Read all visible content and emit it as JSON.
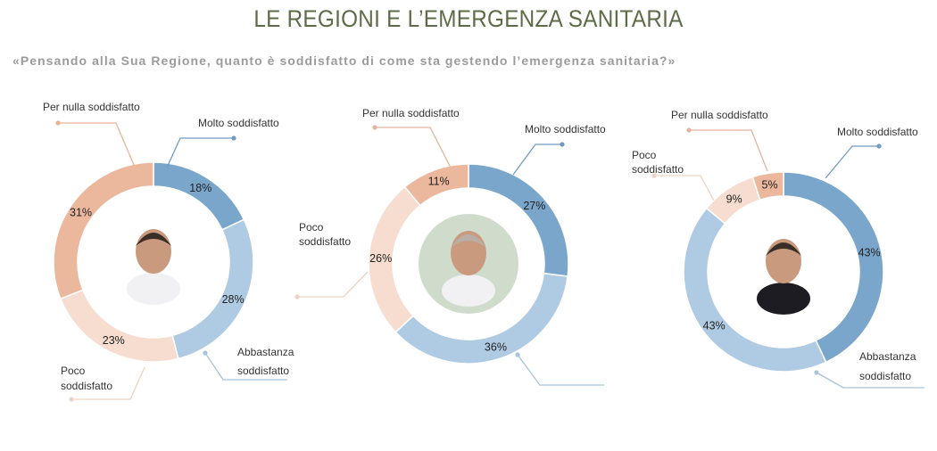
{
  "title": "LE REGIONI E L’EMERGENZA SANITARIA",
  "subtitle": "«Pensando alla Sua Regione, quanto è soddisfatto di come sta gestendo l’emergenza sanitaria?»",
  "colors": {
    "molto": "#7aa6cc",
    "abbastanza": "#afcbe3",
    "poco": "#f6ddd0",
    "per_nulla": "#ebb79d",
    "title": "#5e6b47"
  },
  "chart_data": [
    {
      "type": "pie",
      "donut": true,
      "categories": [
        "Molto soddisfatto",
        "Abbastanza soddisfatto",
        "Poco soddisfatto",
        "Per nulla soddisfatto"
      ],
      "values": [
        18,
        28,
        23,
        31
      ],
      "value_labels": [
        "18%",
        "28%",
        "23%",
        "31%"
      ],
      "labels": {
        "molto": "Molto soddisfatto",
        "abbastanza_1": "Abbastanza",
        "abbastanza_2": "soddisfatto",
        "poco_1": "Poco",
        "poco_2": "soddisfatto",
        "per_nulla": "Per nulla soddisfatto"
      }
    },
    {
      "type": "pie",
      "donut": true,
      "categories": [
        "Molto soddisfatto",
        "Abbastanza soddisfatto",
        "Poco soddisfatto",
        "Per nulla soddisfatto"
      ],
      "values": [
        27,
        36,
        26,
        11
      ],
      "value_labels": [
        "27%",
        "36%",
        "26%",
        "11%"
      ],
      "labels": {
        "molto": "Molto soddisfatto",
        "poco_1": "Poco",
        "poco_2": "soddisfatto",
        "per_nulla": "Per nulla soddisfatto"
      }
    },
    {
      "type": "pie",
      "donut": true,
      "categories": [
        "Molto soddisfatto",
        "Abbastanza soddisfatto",
        "Poco soddisfatto",
        "Per nulla soddisfatto"
      ],
      "values": [
        43,
        43,
        9,
        5
      ],
      "value_labels": [
        "43%",
        "43%",
        "9%",
        "5%"
      ],
      "labels": {
        "molto": "Molto soddisfatto",
        "abbastanza_1": "Abbastanza",
        "abbastanza_2": "soddisfatto",
        "poco_1": "Poco",
        "poco_2": "soddisfatto",
        "per_nulla": "Per nulla soddisfatto"
      }
    }
  ]
}
